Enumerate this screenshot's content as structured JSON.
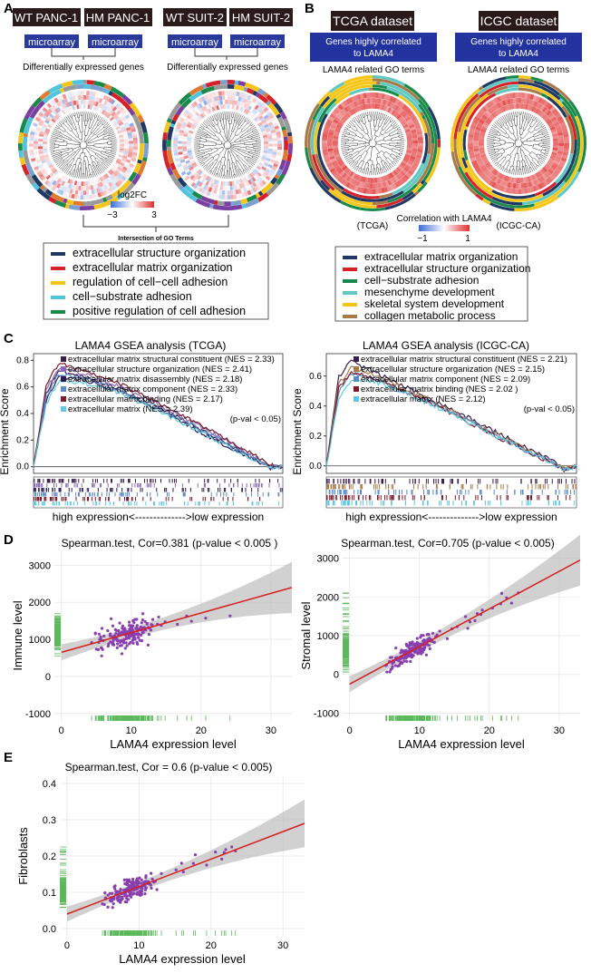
{
  "colors": {
    "navy": "#1f3864",
    "red": "#d6202a",
    "yellow": "#f5c518",
    "cyan": "#4fc4dc",
    "green": "#1a8a4a",
    "mesen": "#5fc8c0",
    "brown": "#a87a4a",
    "heat_low": "#3b6fd8",
    "heat_high": "#e03030",
    "purple_dot": "#8a3fb0",
    "fit_line": "#d62020",
    "rug": "#5cb85c"
  },
  "panel_A": {
    "letter": "A",
    "tags": [
      "WT PANC-1",
      "HM PANC-1",
      "WT SUIT-2",
      "HM SUIT-2"
    ],
    "microarray": "microarray",
    "deg_label": "Differentially expressed genes",
    "log2fc_label": "log2FC",
    "log2fc_min": "−3",
    "log2fc_max": "3",
    "intersection_label": "Intersection of GO Terms",
    "legend": [
      {
        "label": "extracellular structure organization",
        "color": "#1f3864"
      },
      {
        "label": "extracellular matrix organization",
        "color": "#d6202a"
      },
      {
        "label": "regulation of cell−cell adhesion",
        "color": "#f5c518"
      },
      {
        "label": "cell−substrate adhesion",
        "color": "#4fc4dc"
      },
      {
        "label": "positive regulation of cell adhesion",
        "color": "#1a8a4a"
      }
    ]
  },
  "panel_B": {
    "letter": "B",
    "datasets": [
      "TCGA dataset",
      "ICGC dataset"
    ],
    "box_text_1": "Genes highly correlated",
    "box_text_2": "to LAMA4",
    "go_label": "LAMA4 related GO terms",
    "corr_label": "Correlation with LAMA4",
    "corr_min": "−1",
    "corr_max": "1",
    "left_sub": "(TCGA)",
    "right_sub": "(ICGC-CA)",
    "legend": [
      {
        "label": "extracellular matrix organization",
        "color": "#1f3864"
      },
      {
        "label": "extracellular structure organization",
        "color": "#d6202a"
      },
      {
        "label": "cell−substrate adhesion",
        "color": "#1a8a4a"
      },
      {
        "label": "mesenchyme development",
        "color": "#5fc8c0"
      },
      {
        "label": "skeletal system development",
        "color": "#f5c518"
      },
      {
        "label": "collagen metabolic process",
        "color": "#a87a4a"
      }
    ]
  },
  "panel_C": {
    "letter": "C",
    "left_title": "LAMA4 GSEA analysis (TCGA)",
    "right_title": "LAMA4 GSEA analysis (ICGC-CA)",
    "ylabel": "Enrichment Score",
    "xlabel": "high expression<-------------->low expression",
    "pval": "(p-val < 0.05)",
    "left_yticks": [
      "0.0",
      "0.2",
      "0.4",
      "0.6",
      "0.8"
    ],
    "right_yticks": [
      "0.0",
      "0.2",
      "0.4",
      "0.6"
    ],
    "left_legend": [
      {
        "label": "extracellular matrix structural constituent (NES = 2.33)",
        "color": "#3b1f4a"
      },
      {
        "label": "extracellular structure organization (NES = 2.41)",
        "color": "#8a6ab8"
      },
      {
        "label": "extracellular matrix disassembly (NES = 2.18)",
        "color": "#2a1a50"
      },
      {
        "label": "extracellular matrix component (NES = 2.33)",
        "color": "#5a8ac8"
      },
      {
        "label": "extracellular matrix binding (NES = 2.17)",
        "color": "#7a1a2a"
      },
      {
        "label": "extracellular matrix (NES = 2.39)",
        "color": "#5fc8e0"
      }
    ],
    "right_legend": [
      {
        "label": "extracellular matrix structural constituent (NES = 2.21)",
        "color": "#3b1f4a"
      },
      {
        "label": "extracellular structure organization (NES = 2.15)",
        "color": "#a87a4a"
      },
      {
        "label": "extracellular matrix component (NES = 2.09)",
        "color": "#5a8ac8"
      },
      {
        "label": "extracellular matrix binding (NES = 2.02 )",
        "color": "#7a1a2a"
      },
      {
        "label": "extracellular matrix (NES = 2.12)",
        "color": "#5fc8e0"
      }
    ]
  },
  "panel_D": {
    "letter": "D",
    "left_title": "Spearman.test, Cor=0.381 (p-value < 0.005 )",
    "right_title": "Spearman.test, Cor=0.705 (p-value < 0.005)",
    "left_ylabel": "Immune level",
    "right_ylabel": "Stromal level",
    "xlabel": "LAMA4 expression level"
  },
  "panel_E": {
    "letter": "E",
    "title": "Spearman.test, Cor = 0.6 (p-value < 0.005)",
    "ylabel": "Fibroblasts",
    "xlabel": "LAMA4 expression level"
  },
  "chart_data": [
    {
      "type": "line",
      "title": "LAMA4 GSEA analysis (TCGA)",
      "ylabel": "Enrichment Score",
      "xlabel": "high expression<-------------->low expression",
      "ylim": [
        -0.05,
        0.85
      ],
      "x": [
        0,
        5,
        10,
        20,
        35,
        50,
        65,
        80,
        90,
        95,
        100
      ],
      "series": [
        {
          "name": "extracellular matrix structural constituent (NES = 2.33)",
          "values": [
            0,
            0.55,
            0.72,
            0.68,
            0.58,
            0.45,
            0.3,
            0.15,
            0.05,
            0.0,
            0
          ]
        },
        {
          "name": "extracellular structure organization (NES = 2.41)",
          "values": [
            0,
            0.58,
            0.74,
            0.7,
            0.6,
            0.47,
            0.32,
            0.17,
            0.06,
            0.0,
            0
          ]
        },
        {
          "name": "extracellular matrix disassembly (NES = 2.18)",
          "values": [
            0,
            0.5,
            0.68,
            0.65,
            0.56,
            0.43,
            0.28,
            0.13,
            0.04,
            -0.01,
            0
          ]
        },
        {
          "name": "extracellular matrix component (NES = 2.33)",
          "values": [
            0,
            0.52,
            0.7,
            0.67,
            0.57,
            0.44,
            0.3,
            0.15,
            0.05,
            0.0,
            0
          ]
        },
        {
          "name": "extracellular matrix binding (NES = 2.17)",
          "values": [
            0,
            0.6,
            0.78,
            0.72,
            0.62,
            0.48,
            0.33,
            0.18,
            0.07,
            0.01,
            0
          ]
        },
        {
          "name": "extracellular matrix (NES = 2.39)",
          "values": [
            0,
            0.47,
            0.64,
            0.63,
            0.55,
            0.42,
            0.28,
            0.13,
            0.04,
            -0.01,
            0
          ]
        }
      ]
    },
    {
      "type": "line",
      "title": "LAMA4 GSEA analysis (ICGC-CA)",
      "ylabel": "Enrichment Score",
      "xlabel": "high expression<-------------->low expression",
      "ylim": [
        -0.05,
        0.75
      ],
      "x": [
        0,
        5,
        10,
        20,
        35,
        50,
        65,
        80,
        90,
        95,
        100
      ],
      "series": [
        {
          "name": "extracellular matrix structural constituent (NES = 2.21)",
          "values": [
            0,
            0.6,
            0.7,
            0.62,
            0.5,
            0.38,
            0.25,
            0.12,
            0.04,
            -0.02,
            0
          ]
        },
        {
          "name": "extracellular structure organization (NES = 2.15)",
          "values": [
            0,
            0.55,
            0.66,
            0.6,
            0.49,
            0.37,
            0.24,
            0.11,
            0.03,
            -0.02,
            0
          ]
        },
        {
          "name": "extracellular matrix component (NES = 2.09)",
          "values": [
            0,
            0.5,
            0.62,
            0.58,
            0.47,
            0.36,
            0.23,
            0.1,
            0.03,
            -0.03,
            0
          ]
        },
        {
          "name": "extracellular matrix binding (NES = 2.02 )",
          "values": [
            0,
            0.52,
            0.63,
            0.58,
            0.47,
            0.35,
            0.22,
            0.1,
            0.02,
            -0.03,
            0
          ]
        },
        {
          "name": "extracellular matrix (NES = 2.12)",
          "values": [
            0,
            0.45,
            0.58,
            0.56,
            0.46,
            0.35,
            0.22,
            0.1,
            0.02,
            -0.03,
            0
          ]
        }
      ]
    },
    {
      "type": "scatter",
      "title": "Spearman.test, Cor=0.381 (p-value < 0.005 )",
      "xlabel": "LAMA4 expression level",
      "ylabel": "Immune level",
      "xlim": [
        -1,
        33
      ],
      "ylim": [
        -1200,
        3400
      ],
      "xticks": [
        0,
        10,
        20,
        30
      ],
      "yticks": [
        -1000,
        0,
        1000,
        2000,
        3000
      ],
      "fit": {
        "x": [
          0,
          33
        ],
        "y": [
          650,
          2400
        ]
      }
    },
    {
      "type": "scatter",
      "title": "Spearman.test, Cor=0.705 (p-value < 0.005)",
      "xlabel": "LAMA4 expression level",
      "ylabel": "Stromal level",
      "xlim": [
        -1,
        33
      ],
      "ylim": [
        -1200,
        3200
      ],
      "xticks": [
        0,
        10,
        20,
        30
      ],
      "yticks": [
        -1000,
        0,
        1000,
        2000,
        3000
      ],
      "fit": {
        "x": [
          0,
          33
        ],
        "y": [
          -250,
          2950
        ]
      }
    },
    {
      "type": "scatter",
      "title": "Spearman.test, Cor = 0.6 (p-value < 0.005)",
      "xlabel": "LAMA4 expression level",
      "ylabel": "Fibroblasts",
      "xlim": [
        -1,
        33
      ],
      "ylim": [
        -0.02,
        0.42
      ],
      "xticks": [
        0,
        10,
        20,
        30
      ],
      "yticks": [
        0.0,
        0.1,
        0.2,
        0.3,
        0.4
      ],
      "fit": {
        "x": [
          0,
          33
        ],
        "y": [
          0.04,
          0.29
        ]
      }
    }
  ]
}
